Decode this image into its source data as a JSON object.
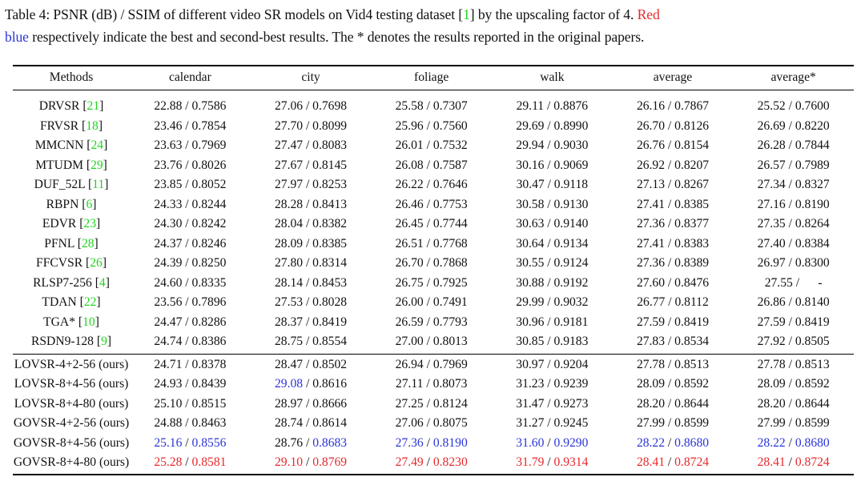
{
  "caption": {
    "pre": "Table 4: PSNR (dB) / SSIM of different video SR models on Vid4 testing dataset [",
    "ref": "1",
    "mid": "] by the upscaling factor of 4. ",
    "red_word": "Red",
    "line_break_space": " ",
    "blue_word": "blue",
    "post": " respectively indicate the best and second-best results. The * denotes the results reported in the original papers."
  },
  "table": {
    "headers": [
      "Methods",
      "calendar",
      "city",
      "foliage",
      "walk",
      "average",
      "average*"
    ],
    "prior_rows": [
      {
        "method": "DRVSR",
        "ref": "21",
        "cells": [
          "22.88 / 0.7586",
          "27.06 / 0.7698",
          "25.58 / 0.7307",
          "29.11 / 0.8876",
          "26.16 / 0.7867",
          "25.52 / 0.7600"
        ]
      },
      {
        "method": "FRVSR",
        "ref": "18",
        "cells": [
          "23.46 / 0.7854",
          "27.70 / 0.8099",
          "25.96 / 0.7560",
          "29.69 / 0.8990",
          "26.70 / 0.8126",
          "26.69 / 0.8220"
        ]
      },
      {
        "method": "MMCNN",
        "ref": "24",
        "cells": [
          "23.63 / 0.7969",
          "27.47 / 0.8083",
          "26.01 / 0.7532",
          "29.94 / 0.9030",
          "26.76 / 0.8154",
          "26.28 / 0.7844"
        ]
      },
      {
        "method": "MTUDM",
        "ref": "29",
        "cells": [
          "23.76 / 0.8026",
          "27.67 / 0.8145",
          "26.08 / 0.7587",
          "30.16 / 0.9069",
          "26.92 / 0.8207",
          "26.57 / 0.7989"
        ]
      },
      {
        "method": "DUF_52L",
        "ref": "11",
        "cells": [
          "23.85 / 0.8052",
          "27.97 / 0.8253",
          "26.22 / 0.7646",
          "30.47 / 0.9118",
          "27.13 / 0.8267",
          "27.34 / 0.8327"
        ]
      },
      {
        "method": "RBPN",
        "ref": "6",
        "cells": [
          "24.33 / 0.8244",
          "28.28 / 0.8413",
          "26.46 / 0.7753",
          "30.58 / 0.9130",
          "27.41 / 0.8385",
          "27.16 / 0.8190"
        ]
      },
      {
        "method": "EDVR",
        "ref": "23",
        "cells": [
          "24.30 / 0.8242",
          "28.04 / 0.8382",
          "26.45 / 0.7744",
          "30.63 / 0.9140",
          "27.36 / 0.8377",
          "27.35 / 0.8264"
        ]
      },
      {
        "method": "PFNL",
        "ref": "28",
        "cells": [
          "24.37 / 0.8246",
          "28.09 / 0.8385",
          "26.51 / 0.7768",
          "30.64 / 0.9134",
          "27.41 / 0.8383",
          "27.40 / 0.8384"
        ]
      },
      {
        "method": "FFCVSR",
        "ref": "26",
        "cells": [
          "24.39 / 0.8250",
          "27.80 / 0.8314",
          "26.70 / 0.7868",
          "30.55 / 0.9124",
          "27.36 / 0.8389",
          "26.97 / 0.8300"
        ]
      },
      {
        "method": "RLSP7-256",
        "ref": "4",
        "cells": [
          "24.60 / 0.8335",
          "28.14 / 0.8453",
          "26.75 / 0.7925",
          "30.88 / 0.9192",
          "27.60 / 0.8476",
          "27.55 /      -"
        ]
      },
      {
        "method": "TDAN",
        "ref": "22",
        "cells": [
          "23.56 / 0.7896",
          "27.53 / 0.8028",
          "26.00 / 0.7491",
          "29.99 / 0.9032",
          "26.77 / 0.8112",
          "26.86 / 0.8140"
        ]
      },
      {
        "method": "TGA*",
        "ref": "10",
        "cells": [
          "24.47 / 0.8286",
          "28.37 / 0.8419",
          "26.59 / 0.7793",
          "30.96 / 0.9181",
          "27.59 / 0.8419",
          "27.59 / 0.8419"
        ]
      },
      {
        "method": "RSDN9-128",
        "ref": "9",
        "cells": [
          "24.74 / 0.8386",
          "28.75 / 0.8554",
          "27.00 / 0.8013",
          "30.85 / 0.9183",
          "27.83 / 0.8534",
          "27.92 / 0.8505"
        ]
      }
    ],
    "our_rows": [
      {
        "method": "LOVSR-4+2-56 (ours)",
        "cells": [
          {
            "p": "24.71",
            "s": "0.8378"
          },
          {
            "p": "28.47",
            "s": "0.8502"
          },
          {
            "p": "26.94",
            "s": "0.7969"
          },
          {
            "p": "30.97",
            "s": "0.9204"
          },
          {
            "p": "27.78",
            "s": "0.8513"
          },
          {
            "p": "27.78",
            "s": "0.8513"
          }
        ]
      },
      {
        "method": "LOVSR-8+4-56 (ours)",
        "cells": [
          {
            "p": "24.93",
            "s": "0.8439"
          },
          {
            "p": "29.08",
            "s": "0.8616",
            "pc": "blue"
          },
          {
            "p": "27.11",
            "s": "0.8073"
          },
          {
            "p": "31.23",
            "s": "0.9239"
          },
          {
            "p": "28.09",
            "s": "0.8592"
          },
          {
            "p": "28.09",
            "s": "0.8592"
          }
        ]
      },
      {
        "method": "LOVSR-8+4-80 (ours)",
        "cells": [
          {
            "p": "25.10",
            "s": "0.8515"
          },
          {
            "p": "28.97",
            "s": "0.8666"
          },
          {
            "p": "27.25",
            "s": "0.8124"
          },
          {
            "p": "31.47",
            "s": "0.9273"
          },
          {
            "p": "28.20",
            "s": "0.8644"
          },
          {
            "p": "28.20",
            "s": "0.8644"
          }
        ]
      },
      {
        "method": "GOVSR-4+2-56 (ours)",
        "cells": [
          {
            "p": "24.88",
            "s": "0.8463"
          },
          {
            "p": "28.74",
            "s": "0.8614"
          },
          {
            "p": "27.06",
            "s": "0.8075"
          },
          {
            "p": "31.27",
            "s": "0.9245"
          },
          {
            "p": "27.99",
            "s": "0.8599"
          },
          {
            "p": "27.99",
            "s": "0.8599"
          }
        ]
      },
      {
        "method": "GOVSR-8+4-56 (ours)",
        "cells": [
          {
            "p": "25.16",
            "s": "0.8556",
            "pc": "blue",
            "sc": "blue"
          },
          {
            "p": "28.76",
            "s": "0.8683",
            "sc": "blue"
          },
          {
            "p": "27.36",
            "s": "0.8190",
            "pc": "blue",
            "sc": "blue"
          },
          {
            "p": "31.60",
            "s": "0.9290",
            "pc": "blue",
            "sc": "blue"
          },
          {
            "p": "28.22",
            "s": "0.8680",
            "pc": "blue",
            "sc": "blue"
          },
          {
            "p": "28.22",
            "s": "0.8680",
            "pc": "blue",
            "sc": "blue"
          }
        ]
      },
      {
        "method": "GOVSR-8+4-80 (ours)",
        "cells": [
          {
            "p": "25.28",
            "s": "0.8581",
            "pc": "red",
            "sc": "red"
          },
          {
            "p": "29.10",
            "s": "0.8769",
            "pc": "red",
            "sc": "red"
          },
          {
            "p": "27.49",
            "s": "0.8230",
            "pc": "red",
            "sc": "red"
          },
          {
            "p": "31.79",
            "s": "0.9314",
            "pc": "red",
            "sc": "red"
          },
          {
            "p": "28.41",
            "s": "0.8724",
            "pc": "red",
            "sc": "red"
          },
          {
            "p": "28.41",
            "s": "0.8724",
            "pc": "red",
            "sc": "red"
          }
        ]
      }
    ]
  }
}
